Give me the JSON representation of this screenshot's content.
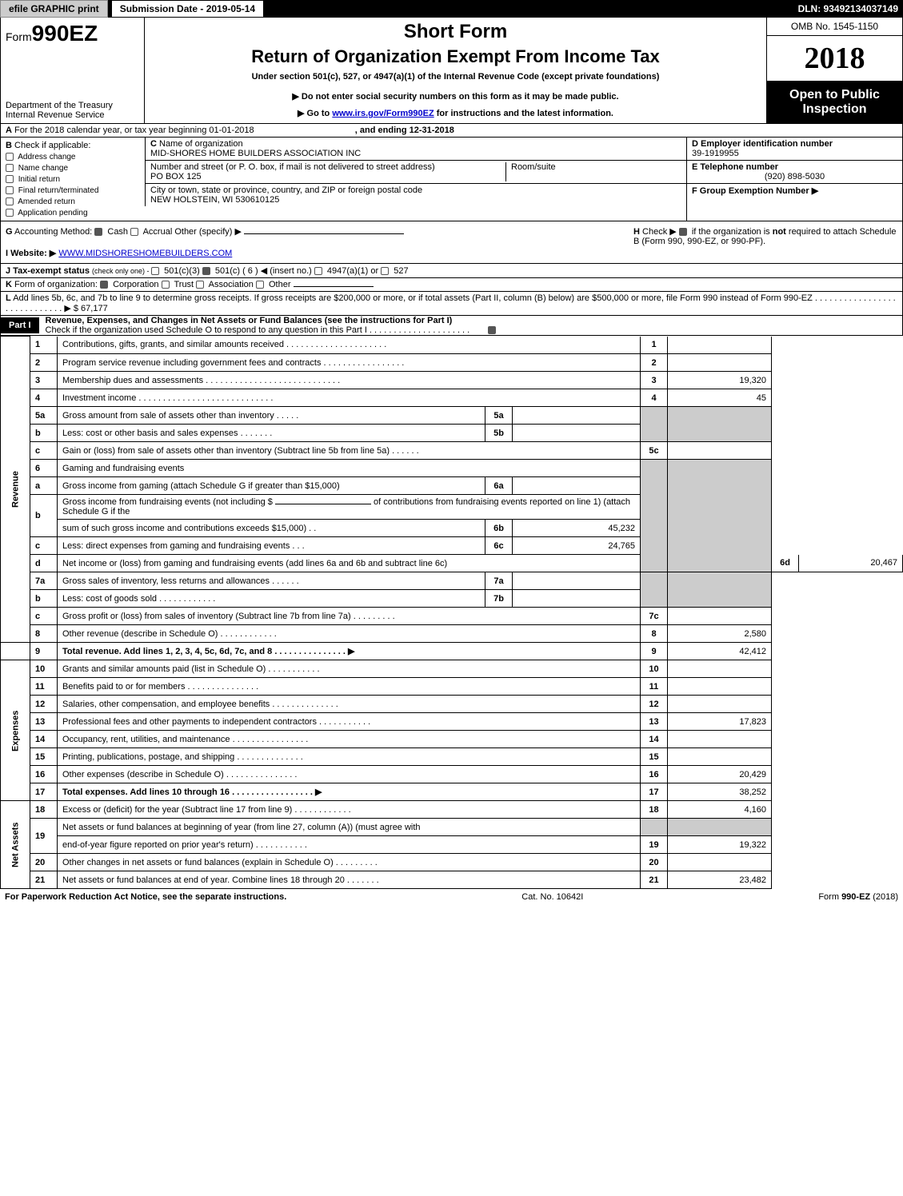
{
  "topbar": {
    "efile": "efile GRAPHIC print",
    "submission": "Submission Date - 2019-05-14",
    "dln": "DLN: 93492134037149"
  },
  "header": {
    "form_prefix": "Form",
    "form_number": "990EZ",
    "dept1": "Department of the Treasury",
    "dept2": "Internal Revenue Service",
    "short": "Short Form",
    "title": "Return of Organization Exempt From Income Tax",
    "under": "Under section 501(c), 527, or 4947(a)(1) of the Internal Revenue Code (except private foundations)",
    "donot": "▶ Do not enter social security numbers on this form as it may be made public.",
    "goto_pre": "▶ Go to ",
    "goto_link": "www.irs.gov/Form990EZ",
    "goto_post": " for instructions and the latest information.",
    "omb": "OMB No. 1545-1150",
    "year": "2018",
    "open1": "Open to Public",
    "open2": "Inspection"
  },
  "rowA": {
    "a": "A",
    "text1": "For the 2018 calendar year, or tax year beginning 01-01-2018",
    "text2": ", and ending 12-31-2018"
  },
  "sectionB": {
    "B": "B",
    "check_if": "Check if applicable:",
    "items": [
      "Address change",
      "Name change",
      "Initial return",
      "Final return/terminated",
      "Amended return",
      "Application pending"
    ],
    "C": "C",
    "nameorg_label": "Name of organization",
    "nameorg": "MID-SHORES HOME BUILDERS ASSOCIATION INC",
    "street_label": "Number and street (or P. O. box, if mail is not delivered to street address)",
    "street": "PO BOX 125",
    "room_label": "Room/suite",
    "city_label": "City or town, state or province, country, and ZIP or foreign postal code",
    "city": "NEW HOLSTEIN, WI  530610125",
    "D": "D Employer identification number",
    "ein": "39-1919955",
    "E": "E Telephone number",
    "phone": "(920) 898-5030",
    "F": "F Group Exemption Number  ▶"
  },
  "rowG": {
    "G": "G",
    "acct": "Accounting Method:",
    "cash": "Cash",
    "accrual": "Accrual",
    "other": "Other (specify) ▶",
    "H": "H",
    "check": "Check ▶",
    "h_text1": "if the organization is ",
    "h_not": "not",
    "h_text2": " required to attach Schedule B (Form 990, 990-EZ, or 990-PF)."
  },
  "rowI": {
    "I": "I Website: ▶",
    "url": "WWW.MIDSHORESHOMEBUILDERS.COM"
  },
  "rowJ": {
    "J": "J Tax-exempt status",
    "small": "(check only one) - ",
    "opts": "501(c)(3)   501(c) ( 6) ◀ (insert no.)   4947(a)(1) or   527"
  },
  "rowK": {
    "K": "K",
    "text": "Form of organization:",
    "opts": [
      "Corporation",
      "Trust",
      "Association",
      "Other"
    ]
  },
  "rowL": {
    "L": "L",
    "text": "Add lines 5b, 6c, and 7b to line 9 to determine gross receipts. If gross receipts are $200,000 or more, or if total assets (Part II, column (B) below) are $500,000 or more, file Form 990 instead of Form 990-EZ  .  .  .  .  .  .  .  .  .  .  .  .  .  .  .  .  .  .  .  .  .  .  .  .  .  .  .  .  .   ▶ $ 67,177"
  },
  "part1": {
    "tag": "Part I",
    "title": "Revenue, Expenses, and Changes in Net Assets or Fund Balances (see the instructions for Part I)",
    "sub": "Check if the organization used Schedule O to respond to any question in this Part I .  .  .  .  .  .  .  .  .  .  .  .  .  .  .  .  .  .  .  .  ."
  },
  "sides": {
    "rev": "Revenue",
    "exp": "Expenses",
    "na": "Net Assets"
  },
  "lines": {
    "1": {
      "n": "1",
      "d": "Contributions, gifts, grants, and similar amounts received  .  .  .  .  .  .  .  .  .  .  .  .  .  .  .  .  .  .  .  .  .",
      "box": "1",
      "val": ""
    },
    "2": {
      "n": "2",
      "d": "Program service revenue including government fees and contracts  .  .  .  .  .  .  .  .  .  .  .  .  .  .  .  .  .",
      "box": "2",
      "val": ""
    },
    "3": {
      "n": "3",
      "d": "Membership dues and assessments  .  .  .  .  .  .  .  .  .  .  .  .  .  .  .  .  .  .  .  .  .  .  .  .  .  .  .  .",
      "box": "3",
      "val": "19,320"
    },
    "4": {
      "n": "4",
      "d": "Investment income  .  .  .  .  .  .  .  .  .  .  .  .  .  .  .  .  .  .  .  .  .  .  .  .  .  .  .  .",
      "box": "4",
      "val": "45"
    },
    "5a": {
      "n": "5a",
      "d": "Gross amount from sale of assets other than inventory  .  .  .  .  .",
      "sb": "5a",
      "sv": ""
    },
    "5b": {
      "n": "b",
      "d": "Less: cost or other basis and sales expenses  .  .  .  .  .  .  .",
      "sb": "5b",
      "sv": ""
    },
    "5c": {
      "n": "c",
      "d": "Gain or (loss) from sale of assets other than inventory (Subtract line 5b from line 5a)         .   .   .   .   .   .",
      "box": "5c",
      "val": ""
    },
    "6": {
      "n": "6",
      "d": "Gaming and fundraising events"
    },
    "6a": {
      "n": "a",
      "d": "Gross income from gaming (attach Schedule G if greater than $15,000)",
      "sb": "6a",
      "sv": ""
    },
    "6b": {
      "n": "b",
      "d1": "Gross income from fundraising events (not including $ ",
      "d2": " of contributions from fundraising events reported on line 1) (attach Schedule G if the",
      "d3": "sum of such gross income and contributions exceeds $15,000)        .   .",
      "sb": "6b",
      "sv": "45,232"
    },
    "6c": {
      "n": "c",
      "d": "Less: direct expenses from gaming and fundraising events        .   .   .",
      "sb": "6c",
      "sv": "24,765"
    },
    "6d": {
      "n": "d",
      "d": "Net income or (loss) from gaming and fundraising events (add lines 6a and 6b and subtract line 6c)",
      "box": "6d",
      "val": "20,467"
    },
    "7a": {
      "n": "7a",
      "d": "Gross sales of inventory, less returns and allowances          .   .   .   .   .   .",
      "sb": "7a",
      "sv": ""
    },
    "7b": {
      "n": "b",
      "d": "Less: cost of goods sold              .   .   .   .   .   .   .   .   .   .   .   .",
      "sb": "7b",
      "sv": ""
    },
    "7c": {
      "n": "c",
      "d": "Gross profit or (loss) from sales of inventory (Subtract line 7b from line 7a)          .   .   .   .   .   .   .   .   .",
      "box": "7c",
      "val": ""
    },
    "8": {
      "n": "8",
      "d": "Other revenue (describe in Schedule O)          .   .   .   .   .   .   .   .   .   .   .   .",
      "box": "8",
      "val": "2,580"
    },
    "9": {
      "n": "9",
      "d": "Total revenue. Add lines 1, 2, 3, 4, 5c, 6d, 7c, and 8        .   .   .   .   .   .   .   .   .   .   .   .   .   .   . ▶",
      "box": "9",
      "val": "42,412",
      "bold": true
    },
    "10": {
      "n": "10",
      "d": "Grants and similar amounts paid (list in Schedule O)        .   .   .   .   .   .   .   .   .   .   .",
      "box": "10",
      "val": ""
    },
    "11": {
      "n": "11",
      "d": "Benefits paid to or for members        .   .   .   .   .   .   .   .   .   .   .   .   .   .   .",
      "box": "11",
      "val": ""
    },
    "12": {
      "n": "12",
      "d": "Salaries, other compensation, and employee benefits        .   .   .   .   .   .   .   .   .   .   .   .   .   .",
      "box": "12",
      "val": ""
    },
    "13": {
      "n": "13",
      "d": "Professional fees and other payments to independent contractors        .   .   .   .   .   .   .   .   .   .   .",
      "box": "13",
      "val": "17,823"
    },
    "14": {
      "n": "14",
      "d": "Occupancy, rent, utilities, and maintenance      .   .   .   .   .   .   .   .   .   .   .   .   .   .   .   .",
      "box": "14",
      "val": ""
    },
    "15": {
      "n": "15",
      "d": "Printing, publications, postage, and shipping        .   .   .   .   .   .   .   .   .   .   .   .   .   .",
      "box": "15",
      "val": ""
    },
    "16": {
      "n": "16",
      "d": "Other expenses (describe in Schedule O)        .   .   .   .   .   .   .   .   .   .   .   .   .   .   .",
      "box": "16",
      "val": "20,429"
    },
    "17": {
      "n": "17",
      "d": "Total expenses. Add lines 10 through 16        .   .   .   .   .   .   .   .   .   .   .   .   .   .   .   .   . ▶",
      "box": "17",
      "val": "38,252",
      "bold": true
    },
    "18": {
      "n": "18",
      "d": "Excess or (deficit) for the year (Subtract line 17 from line 9)        .   .   .   .   .   .   .   .   .   .   .   .",
      "box": "18",
      "val": "4,160"
    },
    "19": {
      "n": "19",
      "d": "Net assets or fund balances at beginning of year (from line 27, column (A)) (must agree with",
      "d2": "end-of-year figure reported on prior year's return)        .   .   .   .   .   .   .   .   .   .   .",
      "box": "19",
      "val": "19,322"
    },
    "20": {
      "n": "20",
      "d": "Other changes in net assets or fund balances (explain in Schedule O)        .   .   .   .   .   .   .   .   .",
      "box": "20",
      "val": ""
    },
    "21": {
      "n": "21",
      "d": "Net assets or fund balances at end of year. Combine lines 18 through 20          .   .   .   .   .   .   .",
      "box": "21",
      "val": "23,482"
    }
  },
  "footer": {
    "left": "For Paperwork Reduction Act Notice, see the separate instructions.",
    "mid": "Cat. No. 10642I",
    "right": "Form 990-EZ (2018)"
  },
  "colors": {
    "black": "#000000",
    "gray": "#cccccc",
    "link": "#0000cc"
  }
}
